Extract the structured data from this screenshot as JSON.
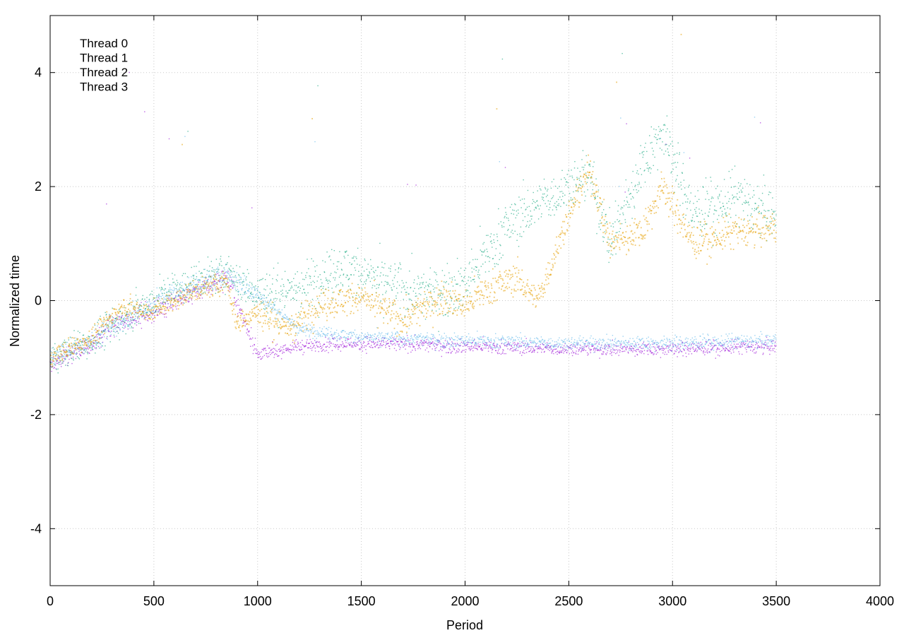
{
  "chart_data": {
    "type": "scatter",
    "xlabel": "Period",
    "ylabel": "Normalized time",
    "xlim": [
      0,
      4000
    ],
    "ylim": [
      -5,
      5
    ],
    "xticks": [
      0,
      500,
      1000,
      1500,
      2000,
      2500,
      3000,
      3500,
      4000
    ],
    "yticks": [
      -4,
      -2,
      0,
      2,
      4
    ],
    "grid": true,
    "legend_position": "top-left",
    "n_points": 3500,
    "series": [
      {
        "name": "Thread 0",
        "color": "#9400d3",
        "trend": [
          [
            0,
            -1.1
          ],
          [
            100,
            -0.95
          ],
          [
            200,
            -0.75
          ],
          [
            300,
            -0.45
          ],
          [
            400,
            -0.3
          ],
          [
            500,
            -0.2
          ],
          [
            600,
            0.0
          ],
          [
            700,
            0.15
          ],
          [
            850,
            0.4
          ],
          [
            1000,
            -0.95
          ],
          [
            1200,
            -0.8
          ],
          [
            1500,
            -0.75
          ],
          [
            2000,
            -0.8
          ],
          [
            2500,
            -0.85
          ],
          [
            3000,
            -0.85
          ],
          [
            3500,
            -0.8
          ]
        ]
      },
      {
        "name": "Thread 1",
        "color": "#009e73",
        "trend": [
          [
            0,
            -1.05
          ],
          [
            200,
            -0.7
          ],
          [
            400,
            -0.2
          ],
          [
            600,
            0.2
          ],
          [
            850,
            0.5
          ],
          [
            1000,
            0.1
          ],
          [
            1200,
            0.2
          ],
          [
            1400,
            0.6
          ],
          [
            1600,
            0.3
          ],
          [
            1800,
            0.1
          ],
          [
            2000,
            0.3
          ],
          [
            2200,
            1.3
          ],
          [
            2400,
            1.8
          ],
          [
            2600,
            2.2
          ],
          [
            2700,
            1.0
          ],
          [
            2850,
            2.3
          ],
          [
            2950,
            3.0
          ],
          [
            3100,
            1.5
          ],
          [
            3300,
            1.8
          ],
          [
            3500,
            1.5
          ]
        ]
      },
      {
        "name": "Thread 2",
        "color": "#56b4e9",
        "trend": [
          [
            0,
            -1.0
          ],
          [
            200,
            -0.7
          ],
          [
            400,
            -0.25
          ],
          [
            600,
            0.15
          ],
          [
            850,
            0.45
          ],
          [
            1000,
            0.1
          ],
          [
            1200,
            -0.5
          ],
          [
            1500,
            -0.65
          ],
          [
            2000,
            -0.7
          ],
          [
            2500,
            -0.75
          ],
          [
            3000,
            -0.75
          ],
          [
            3500,
            -0.7
          ]
        ]
      },
      {
        "name": "Thread 3",
        "color": "#e69f00",
        "trend": [
          [
            0,
            -1.0
          ],
          [
            200,
            -0.65
          ],
          [
            350,
            -0.1
          ],
          [
            500,
            -0.2
          ],
          [
            650,
            0.1
          ],
          [
            850,
            0.35
          ],
          [
            900,
            -0.4
          ],
          [
            1000,
            -0.2
          ],
          [
            1150,
            -0.5
          ],
          [
            1300,
            -0.05
          ],
          [
            1500,
            0.05
          ],
          [
            1700,
            -0.35
          ],
          [
            1900,
            0.1
          ],
          [
            2000,
            -0.1
          ],
          [
            2100,
            0.2
          ],
          [
            2250,
            0.4
          ],
          [
            2350,
            0.0
          ],
          [
            2500,
            1.5
          ],
          [
            2600,
            2.3
          ],
          [
            2700,
            1.0
          ],
          [
            2850,
            1.2
          ],
          [
            2950,
            2.0
          ],
          [
            3100,
            1.0
          ],
          [
            3300,
            1.2
          ],
          [
            3500,
            1.3
          ]
        ]
      }
    ]
  }
}
